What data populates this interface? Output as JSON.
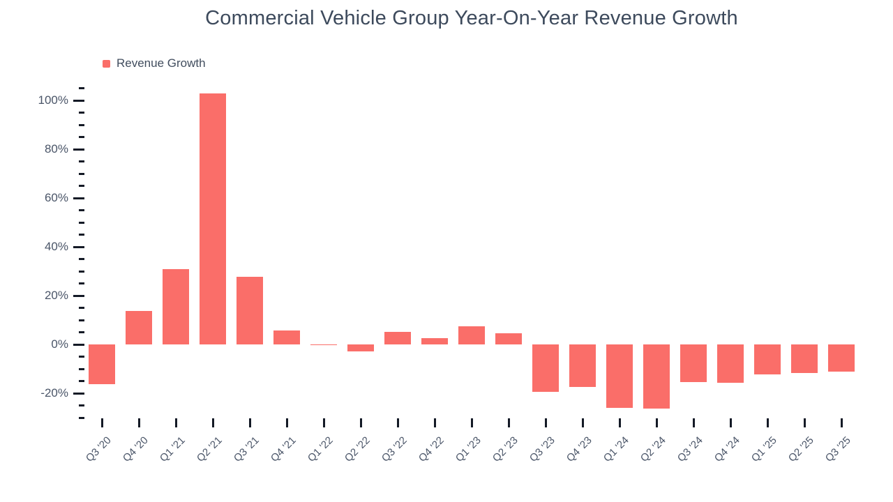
{
  "chart": {
    "title": "Commercial Vehicle Group Year-On-Year Revenue Growth",
    "legend": {
      "label": "Revenue Growth",
      "swatch_color": "#fa6e69"
    }
  },
  "chart_data": {
    "type": "bar",
    "title": "Commercial Vehicle Group Year-On-Year Revenue Growth",
    "xlabel": "",
    "ylabel": "",
    "unit": "%",
    "grid": false,
    "legend_position": "top-left",
    "bar_color": "#fa6e69",
    "axis_text_color": "#4a5568",
    "tick_color": "#141a26",
    "ylim": [
      -30,
      105
    ],
    "y_major_tick_step": 20,
    "y_minor_tick_step": 5,
    "y_major_tick_labels": [
      "100%",
      "80%",
      "60%",
      "40%",
      "20%",
      "0%",
      "-20%"
    ],
    "categories": [
      "Q3 '20",
      "Q4 '20",
      "Q1 '21",
      "Q2 '21",
      "Q3 '21",
      "Q4 '21",
      "Q1 '22",
      "Q2 '22",
      "Q3 '22",
      "Q4 '22",
      "Q1 '23",
      "Q2 '23",
      "Q3 '23",
      "Q4 '23",
      "Q1 '24",
      "Q2 '24",
      "Q3 '24",
      "Q4 '24",
      "Q1 '25",
      "Q2 '25",
      "Q3 '25"
    ],
    "series": [
      {
        "name": "Revenue Growth",
        "values": [
          -16.3,
          13.7,
          31.0,
          103.0,
          27.6,
          5.8,
          -0.4,
          -2.9,
          5.2,
          2.5,
          7.4,
          4.6,
          -19.4,
          -17.3,
          -26.1,
          -26.4,
          -15.3,
          -15.8,
          -12.4,
          -11.6,
          -11.2
        ]
      }
    ]
  }
}
